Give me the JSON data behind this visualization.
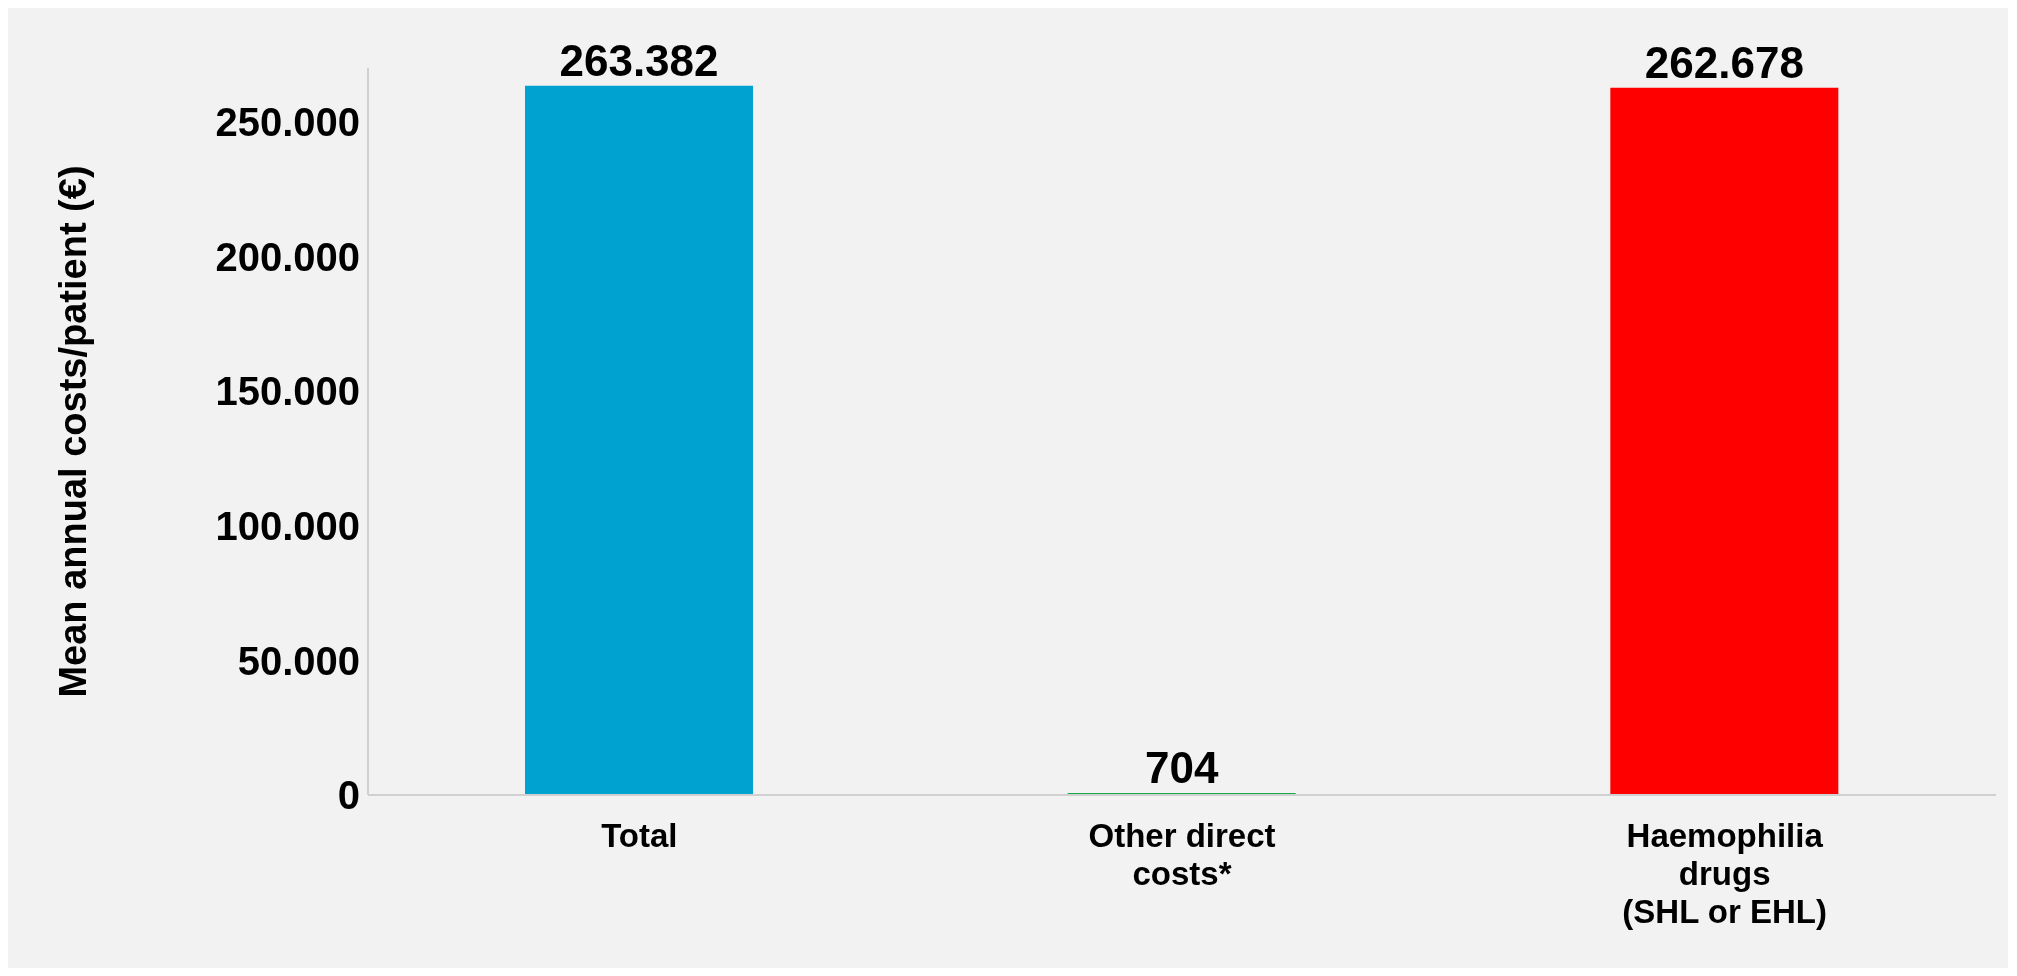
{
  "chart_data": {
    "type": "bar",
    "ylabel": "Mean  annual costs/patient (€)",
    "categories": [
      "Total",
      "Other direct\ncosts*",
      "Haemophilia\ndrugs\n(SHL or EHL)"
    ],
    "values": [
      263382,
      704,
      262678
    ],
    "colors": [
      "#00a3cf",
      "#1aaa4a",
      "#ff0000"
    ],
    "value_labels": [
      "263.382",
      "704",
      "262.678"
    ],
    "ylim": [
      0,
      270000
    ],
    "yticks": [
      {
        "value": 0,
        "label": "0"
      },
      {
        "value": 50000,
        "label": "50.000"
      },
      {
        "value": 100000,
        "label": "100.000"
      },
      {
        "value": 150000,
        "label": "150.000"
      },
      {
        "value": 200000,
        "label": "200.000"
      },
      {
        "value": 250000,
        "label": "250.000"
      }
    ],
    "grid": false,
    "legend": false
  }
}
